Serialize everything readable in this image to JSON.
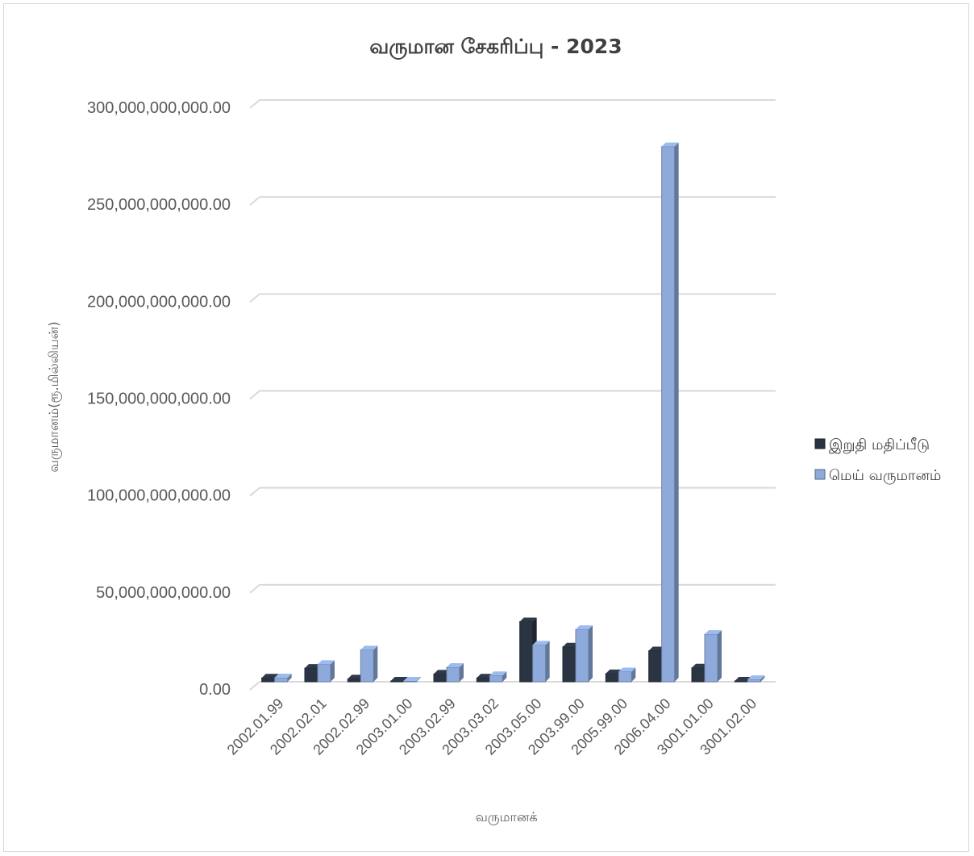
{
  "chart_data": {
    "type": "bar",
    "title": "வருமான சேகரிப்பு - 2023",
    "xlabel": "வருமானக்",
    "ylabel": "வருமானம்(ரூ.மில்லியன்)",
    "ylim": [
      0,
      300000000000
    ],
    "yticks": [
      "0.00",
      "50,000,000,000.00",
      "100,000,000,000.00",
      "150,000,000,000.00",
      "200,000,000,000.00",
      "250,000,000,000.00",
      "300,000,000,000.00"
    ],
    "grid": true,
    "legend_position": "right",
    "categories": [
      "2002.01.99",
      "2002.02.01",
      "2002.02.99",
      "2003.01.00",
      "2003.02.99",
      "2003.03.02",
      "2003.05.00",
      "2003.99.00",
      "2005.99.00",
      "2006.04.00",
      "3001.01.00",
      "3001.02.00"
    ],
    "series": [
      {
        "name": "இறுதி மதிப்பீடு",
        "color": "#2a3442",
        "values": [
          2000000000,
          7000000000,
          1500000000,
          300000000,
          4000000000,
          2000000000,
          31000000000,
          18000000000,
          4200000000,
          16000000000,
          7200000000,
          300000000
        ]
      },
      {
        "name": "மெய் வருமானம்",
        "color": "#8eaadb",
        "values": [
          2100000000,
          9000000000,
          16500000000,
          300000000,
          7500000000,
          3200000000,
          19000000000,
          27000000000,
          5200000000,
          276000000000,
          24500000000,
          1200000000
        ]
      }
    ]
  }
}
